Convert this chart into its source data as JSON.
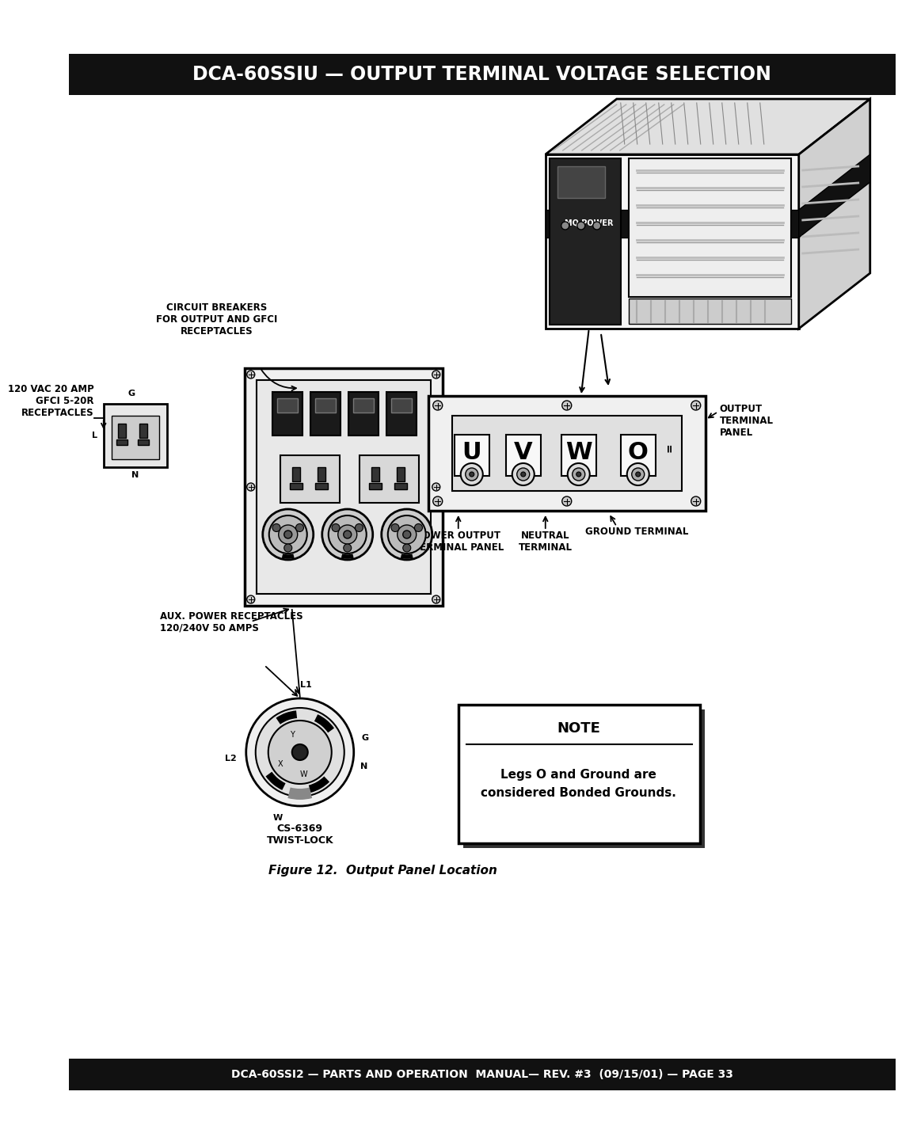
{
  "title": "DCA-60SSIU — OUTPUT TERMINAL VOLTAGE SELECTION",
  "footer": "DCA-60SSI2 — PARTS AND OPERATION  MANUAL— REV. #3  (09/15/01) — PAGE 33",
  "figure_caption": "Figure 12.  Output Panel Location",
  "note_title": "NOTE",
  "note_body": "Legs O and Ground are\nconsidered Bonded Grounds.",
  "bg_color": "#ffffff",
  "header_bg": "#111111",
  "header_text_color": "#ffffff",
  "footer_bg": "#111111",
  "footer_text_color": "#ffffff",
  "labels": {
    "circuit_breakers": "CIRCUIT BREAKERS\nFOR OUTPUT AND GFCI\nRECEPTACLES",
    "gfci": "120 VAC 20 AMP\nGFCI 5-20R\nRECEPTACLES",
    "aux_power": "AUX. POWER RECEPTACLES\n120/240V 50 AMPS",
    "output_terminal_panel": "OUTPUT\nTERMINAL\nPANEL",
    "neutral_terminal": "NEUTRAL\nTERMINAL",
    "ground_terminal": "GROUND TERMINAL",
    "power_output": "POWER OUTPUT\nTERMINAL PANEL",
    "cs6369": "CS-6369\nTWIST-LOCK"
  },
  "terminal_labels": [
    "U",
    "V",
    "W",
    "O"
  ]
}
